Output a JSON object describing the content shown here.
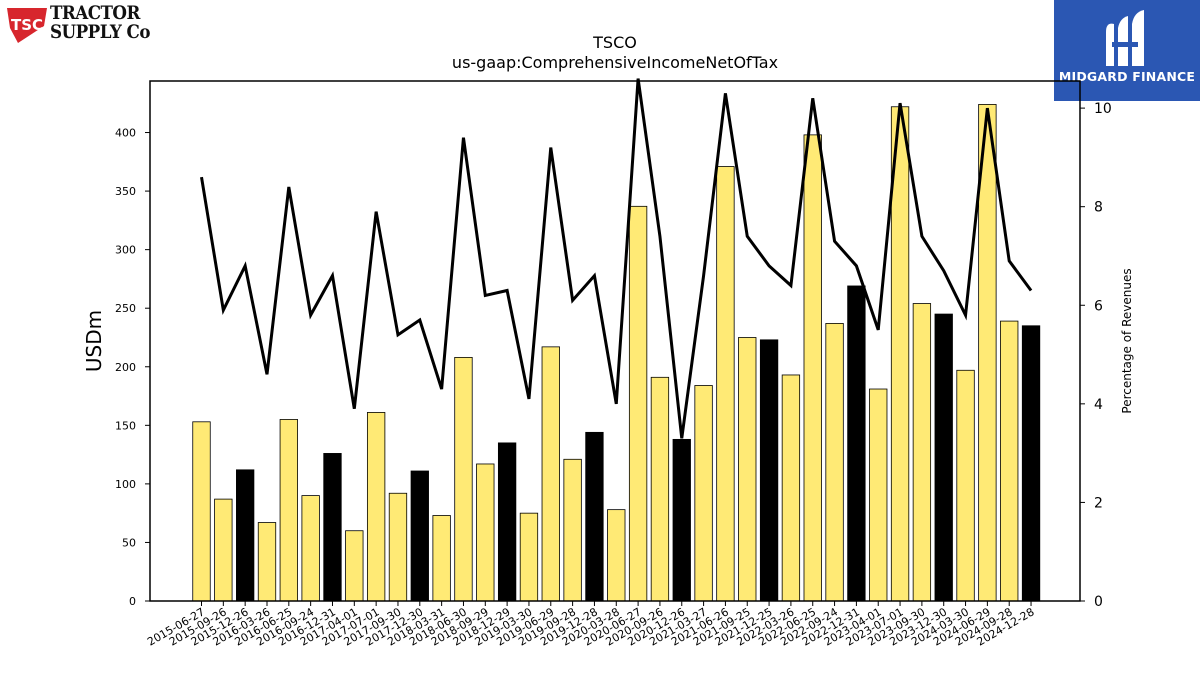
{
  "brand_left": {
    "badge_text": "TSC",
    "wordmark_line1": "TRACTOR",
    "wordmark_line2": "SUPPLY Co"
  },
  "brand_right": {
    "name": "MIDGARD FINANCE",
    "background": "#2b57b3"
  },
  "colors": {
    "bar_normal": "#ffea75",
    "bar_q4": "#000000",
    "line": "#000000"
  },
  "chart_data": {
    "type": "bar",
    "title": "TSCO",
    "subtitle": "us-gaap:ComprehensiveIncomeNetOfTax",
    "ylabel": "USDm",
    "y2label": "Percentage of Revenues",
    "ylim": [
      0,
      444
    ],
    "y2lim": [
      0,
      10.55
    ],
    "yticks": [
      0,
      50,
      100,
      150,
      200,
      250,
      300,
      350,
      400
    ],
    "y2ticks": [
      0,
      2,
      4,
      6,
      8,
      10
    ],
    "categories": [
      "2015-06-27",
      "2015-09-26",
      "2015-12-26",
      "2016-03-26",
      "2016-06-25",
      "2016-09-24",
      "2016-12-31",
      "2017-04-01",
      "2017-07-01",
      "2017-09-30",
      "2017-12-30",
      "2018-03-31",
      "2018-06-30",
      "2018-09-29",
      "2018-12-29",
      "2019-03-30",
      "2019-06-29",
      "2019-09-28",
      "2019-12-28",
      "2020-03-28",
      "2020-06-27",
      "2020-09-26",
      "2020-12-26",
      "2021-03-27",
      "2021-06-26",
      "2021-09-25",
      "2021-12-25",
      "2022-03-26",
      "2022-06-25",
      "2022-09-24",
      "2022-12-31",
      "2023-04-01",
      "2023-07-01",
      "2023-09-30",
      "2023-12-30",
      "2024-03-30",
      "2024-06-29",
      "2024-09-28",
      "2024-12-28"
    ],
    "series": [
      {
        "type": "bar",
        "values": [
          153,
          87,
          112,
          67,
          155,
          90,
          126,
          60,
          161,
          92,
          111,
          73,
          208,
          117,
          135,
          75,
          217,
          121,
          144,
          78,
          337,
          191,
          138,
          184,
          371,
          225,
          223,
          193,
          398,
          237,
          269,
          181,
          422,
          254,
          245,
          197,
          424,
          239,
          235
        ],
        "highlight": [
          false,
          false,
          true,
          false,
          false,
          false,
          true,
          false,
          false,
          false,
          true,
          false,
          false,
          false,
          true,
          false,
          false,
          false,
          true,
          false,
          false,
          false,
          true,
          false,
          false,
          false,
          true,
          false,
          false,
          false,
          true,
          false,
          false,
          false,
          true,
          false,
          false,
          false,
          true
        ]
      },
      {
        "type": "line",
        "axis": "right",
        "values": [
          8.6,
          5.9,
          6.8,
          4.6,
          8.4,
          5.8,
          6.6,
          3.9,
          7.9,
          5.4,
          5.7,
          4.3,
          9.4,
          6.2,
          6.3,
          4.1,
          9.2,
          6.1,
          6.6,
          4.0,
          10.6,
          7.4,
          3.3,
          6.6,
          10.3,
          7.4,
          6.8,
          6.4,
          10.2,
          7.3,
          6.8,
          5.5,
          10.1,
          7.4,
          6.7,
          5.8,
          10.0,
          6.9,
          6.3
        ]
      }
    ]
  }
}
